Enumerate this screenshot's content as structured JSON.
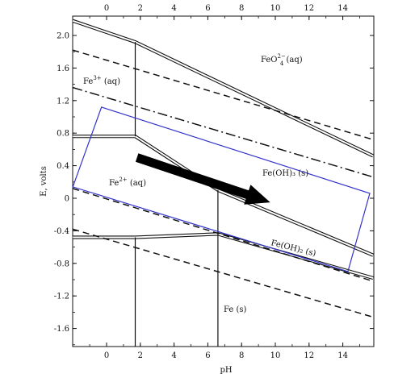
{
  "x_axis": {
    "label": "pH",
    "bottom_ticks": [
      "0",
      "2",
      "4",
      "6",
      "8",
      "10",
      "12",
      "14"
    ],
    "top_ticks": [
      "0",
      "2",
      "4",
      "6",
      "8",
      "10",
      "12",
      "14"
    ]
  },
  "y_axis": {
    "label": "E, volts",
    "ticks": [
      "2.0",
      "1.6",
      "1.2",
      "0.8",
      "0.4",
      "0",
      "-0.4",
      "-0.8",
      "-1.2",
      "-1.6"
    ]
  },
  "regions": {
    "fe3_base": "Fe",
    "fe3_sup": "3+",
    "fe3_tail": " (aq)",
    "fe2_base": "Fe",
    "fe2_sup": "2+",
    "fe2_tail": " (aq)",
    "feo4_base": "FeO",
    "feo4_sup": "2−",
    "feo4_sub": "4",
    "feo4_tail": " (aq)",
    "feoh3": "Fe(OH)₃ (s)",
    "feoh2": "Fe(OH)₂ (s)",
    "fe": "Fe (s)"
  },
  "colors": {
    "line": "#111111",
    "box": "#3333cc",
    "arrow": "#000000"
  },
  "chart_data": {
    "type": "diagram",
    "xlabel": "pH",
    "ylabel": "E, volts",
    "xlim": [
      -2,
      16
    ],
    "ylim": [
      -1.9,
      2.2
    ],
    "boundaries": [
      {
        "kind": "double",
        "points": [
          [
            -2,
            2.18
          ],
          [
            1.7,
            1.92
          ],
          [
            15.8,
            0.52
          ]
        ]
      },
      {
        "kind": "double",
        "points": [
          [
            -2,
            0.76
          ],
          [
            1.7,
            0.76
          ],
          [
            6.6,
            0.1
          ],
          [
            15.8,
            -0.7
          ]
        ]
      },
      {
        "kind": "double",
        "points": [
          [
            -2,
            -0.48
          ],
          [
            1.7,
            -0.48
          ],
          [
            6.6,
            -0.44
          ],
          [
            15.8,
            -0.98
          ]
        ]
      },
      {
        "kind": "single",
        "points": [
          [
            1.7,
            0.76
          ],
          [
            1.7,
            1.92
          ]
        ]
      },
      {
        "kind": "single",
        "points": [
          [
            1.7,
            -0.48
          ],
          [
            1.7,
            -1.9
          ]
        ]
      },
      {
        "kind": "single",
        "points": [
          [
            6.6,
            0.1
          ],
          [
            6.6,
            -0.44
          ]
        ]
      },
      {
        "kind": "single",
        "points": [
          [
            6.6,
            -0.44
          ],
          [
            6.6,
            -1.9
          ]
        ]
      },
      {
        "kind": "dashed",
        "points": [
          [
            -2,
            1.82
          ],
          [
            15.8,
            0.72
          ]
        ]
      },
      {
        "kind": "dashdot",
        "points": [
          [
            -2,
            1.36
          ],
          [
            15.8,
            0.26
          ]
        ]
      },
      {
        "kind": "dashed",
        "points": [
          [
            -2,
            0.12
          ],
          [
            15.8,
            -1.02
          ]
        ]
      },
      {
        "kind": "dashed",
        "points": [
          [
            -2,
            -0.38
          ],
          [
            15.8,
            -1.46
          ]
        ]
      }
    ],
    "highlight_box": [
      [
        -2,
        0.14
      ],
      [
        -0.3,
        1.12
      ],
      [
        15.6,
        0.06
      ],
      [
        14.3,
        -0.9
      ]
    ],
    "arrow": {
      "from": [
        1.8,
        0.5
      ],
      "to": [
        9.7,
        -0.05
      ]
    }
  }
}
